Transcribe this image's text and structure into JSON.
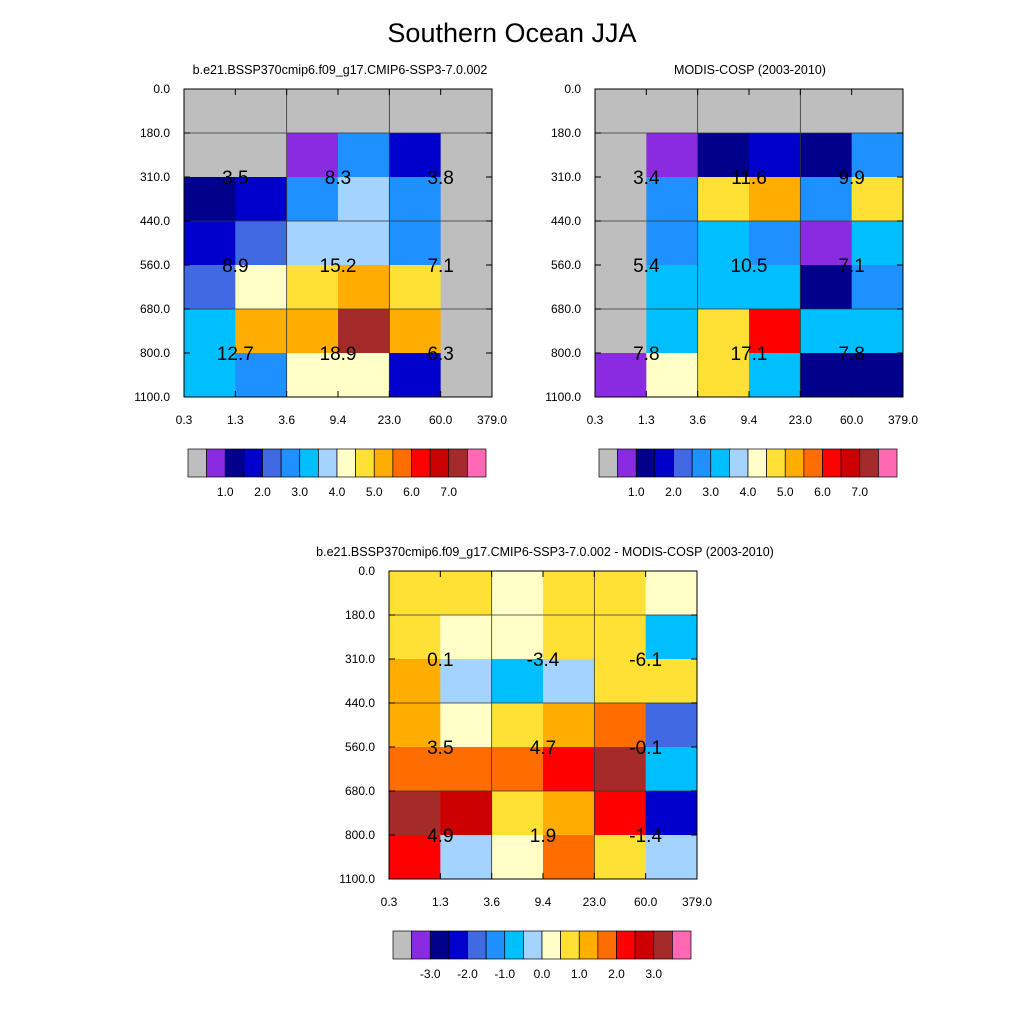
{
  "title": "Southern Ocean JJA",
  "chart_data": [
    {
      "type": "heatmap",
      "id": "model",
      "title": "b.e21.BSSP370cmip6.f09_g17.CMIP6-SSP3-7.0.002",
      "x_edges": [
        "0.3",
        "1.3",
        "3.6",
        "9.4",
        "23.0",
        "60.0",
        "379.0"
      ],
      "y_edges": [
        "0.0",
        "180.0",
        "310.0",
        "440.0",
        "560.0",
        "680.0",
        "800.0",
        "1100.0"
      ],
      "cell_values": [
        [
          0.0,
          0.0,
          0.0,
          0.0,
          0.0,
          0.0
        ],
        [
          0.0,
          0.0,
          0.3,
          2.0,
          1.2,
          0.0
        ],
        [
          0.6,
          1.2,
          2.2,
          3.2,
          2.2,
          0.0
        ],
        [
          1.2,
          1.7,
          3.2,
          3.2,
          2.2,
          0.0
        ],
        [
          1.7,
          3.5,
          4.2,
          4.7,
          4.2,
          0.0
        ],
        [
          2.7,
          4.7,
          4.7,
          6.5,
          4.7,
          0.0
        ],
        [
          2.7,
          2.2,
          3.7,
          3.7,
          1.2,
          0.0
        ]
      ],
      "labels": [
        {
          "text": "3.5",
          "col": 1,
          "row": 2
        },
        {
          "text": "8.3",
          "col": 3,
          "row": 2
        },
        {
          "text": "3.8",
          "col": 5,
          "row": 2
        },
        {
          "text": "8.9",
          "col": 1,
          "row": 4
        },
        {
          "text": "15.2",
          "col": 3,
          "row": 4
        },
        {
          "text": "7.1",
          "col": 5,
          "row": 4
        },
        {
          "text": "12.7",
          "col": 1,
          "row": 6
        },
        {
          "text": "18.9",
          "col": 3,
          "row": 6
        },
        {
          "text": "6.3",
          "col": 5,
          "row": 6
        }
      ],
      "colorbar": {
        "colors": [
          "#bebebe",
          "#8a2be2",
          "#00008b",
          "#0000cd",
          "#4169e1",
          "#1e90ff",
          "#00bfff",
          "#a4d3ff",
          "#ffffc8",
          "#ffe135",
          "#ffad00",
          "#ff6c00",
          "#ff0000",
          "#cd0000",
          "#a52a2a",
          "#ff69b4"
        ],
        "tick_labels": [
          "1.0",
          "2.0",
          "3.0",
          "4.0",
          "5.0",
          "6.0",
          "7.0"
        ],
        "levels": [
          0.05,
          0.5,
          1.0,
          1.5,
          2.0,
          2.5,
          3.0,
          3.5,
          4.0,
          4.5,
          5.0,
          5.5,
          6.0,
          6.5,
          7.0
        ],
        "tick_positions": [
          2,
          4,
          6,
          8,
          10,
          12,
          14
        ]
      }
    },
    {
      "type": "heatmap",
      "id": "obs",
      "title": "MODIS-COSP (2003-2010)",
      "x_edges": [
        "0.3",
        "1.3",
        "3.6",
        "9.4",
        "23.0",
        "60.0",
        "379.0"
      ],
      "y_edges": [
        "0.0",
        "180.0",
        "310.0",
        "440.0",
        "560.0",
        "680.0",
        "800.0",
        "1100.0"
      ],
      "cell_values": [
        [
          0.0,
          0.0,
          0.0,
          0.0,
          0.0,
          0.0
        ],
        [
          0.0,
          0.3,
          0.7,
          1.2,
          0.7,
          2.2
        ],
        [
          0.0,
          2.2,
          4.2,
          4.7,
          2.2,
          4.2
        ],
        [
          0.0,
          2.2,
          2.7,
          2.2,
          0.3,
          2.7
        ],
        [
          0.0,
          2.7,
          2.7,
          2.7,
          0.7,
          2.2
        ],
        [
          0.0,
          2.7,
          4.2,
          5.7,
          2.7,
          2.7
        ],
        [
          0.3,
          3.7,
          4.2,
          2.7,
          0.7,
          0.7
        ]
      ],
      "labels": [
        {
          "text": "3.4",
          "col": 1,
          "row": 2
        },
        {
          "text": "11.6",
          "col": 3,
          "row": 2
        },
        {
          "text": "9.9",
          "col": 5,
          "row": 2
        },
        {
          "text": "5.4",
          "col": 1,
          "row": 4
        },
        {
          "text": "10.5",
          "col": 3,
          "row": 4
        },
        {
          "text": "7.1",
          "col": 5,
          "row": 4
        },
        {
          "text": "7.8",
          "col": 1,
          "row": 6
        },
        {
          "text": "17.1",
          "col": 3,
          "row": 6
        },
        {
          "text": "7.8",
          "col": 5,
          "row": 6
        }
      ],
      "colorbar": {
        "colors": [
          "#bebebe",
          "#8a2be2",
          "#00008b",
          "#0000cd",
          "#4169e1",
          "#1e90ff",
          "#00bfff",
          "#a4d3ff",
          "#ffffc8",
          "#ffe135",
          "#ffad00",
          "#ff6c00",
          "#ff0000",
          "#cd0000",
          "#a52a2a",
          "#ff69b4"
        ],
        "tick_labels": [
          "1.0",
          "2.0",
          "3.0",
          "4.0",
          "5.0",
          "6.0",
          "7.0"
        ],
        "levels": [
          0.05,
          0.5,
          1.0,
          1.5,
          2.0,
          2.5,
          3.0,
          3.5,
          4.0,
          4.5,
          5.0,
          5.5,
          6.0,
          6.5,
          7.0
        ],
        "tick_positions": [
          2,
          4,
          6,
          8,
          10,
          12,
          14
        ]
      }
    },
    {
      "type": "heatmap",
      "id": "diff",
      "title": "b.e21.BSSP370cmip6.f09_g17.CMIP6-SSP3-7.0.002 - MODIS-COSP (2003-2010)",
      "x_edges": [
        "0.3",
        "1.3",
        "3.6",
        "9.4",
        "23.0",
        "60.0",
        "379.0"
      ],
      "y_edges": [
        "0.0",
        "180.0",
        "310.0",
        "440.0",
        "560.0",
        "680.0",
        "800.0",
        "1100.0"
      ],
      "cell_values": [
        [
          0.2,
          0.2,
          -0.2,
          0.2,
          0.2,
          -0.2
        ],
        [
          0.2,
          -0.2,
          -0.2,
          0.2,
          0.2,
          -1.2
        ],
        [
          0.7,
          -0.7,
          -1.2,
          -0.7,
          0.2,
          0.0
        ],
        [
          0.7,
          -0.2,
          0.2,
          0.7,
          1.2,
          -2.2
        ],
        [
          1.2,
          1.2,
          1.2,
          1.7,
          2.7,
          -1.2
        ],
        [
          2.7,
          2.2,
          0.2,
          0.7,
          1.7,
          -2.7
        ],
        [
          1.7,
          -0.7,
          -0.2,
          1.2,
          0.2,
          -0.7
        ]
      ],
      "labels": [
        {
          "text": "0.1",
          "col": 1,
          "row": 2
        },
        {
          "text": "-3.4",
          "col": 3,
          "row": 2
        },
        {
          "text": "-6.1",
          "col": 5,
          "row": 2
        },
        {
          "text": "3.5",
          "col": 1,
          "row": 4
        },
        {
          "text": "4.7",
          "col": 3,
          "row": 4
        },
        {
          "text": "-0.1",
          "col": 5,
          "row": 4
        },
        {
          "text": "4.9",
          "col": 1,
          "row": 6
        },
        {
          "text": "1.9",
          "col": 3,
          "row": 6
        },
        {
          "text": "-1.4",
          "col": 5,
          "row": 6
        }
      ],
      "colorbar": {
        "colors": [
          "#bebebe",
          "#8a2be2",
          "#00008b",
          "#0000cd",
          "#4169e1",
          "#1e90ff",
          "#00bfff",
          "#a4d3ff",
          "#ffffc8",
          "#ffe135",
          "#ffad00",
          "#ff6c00",
          "#ff0000",
          "#cd0000",
          "#a52a2a",
          "#ff69b4"
        ],
        "tick_labels": [
          "-3.0",
          "-2.0",
          "-1.0",
          "0.0",
          "1.0",
          "2.0",
          "3.0"
        ],
        "levels": [
          -9.0,
          -3.5,
          -3.0,
          -2.5,
          -2.0,
          -1.5,
          -1.0,
          -0.5,
          0.0,
          0.5,
          1.0,
          1.5,
          2.0,
          2.5,
          3.0
        ],
        "tick_positions": [
          2,
          4,
          6,
          8,
          10,
          12,
          14
        ]
      }
    }
  ]
}
